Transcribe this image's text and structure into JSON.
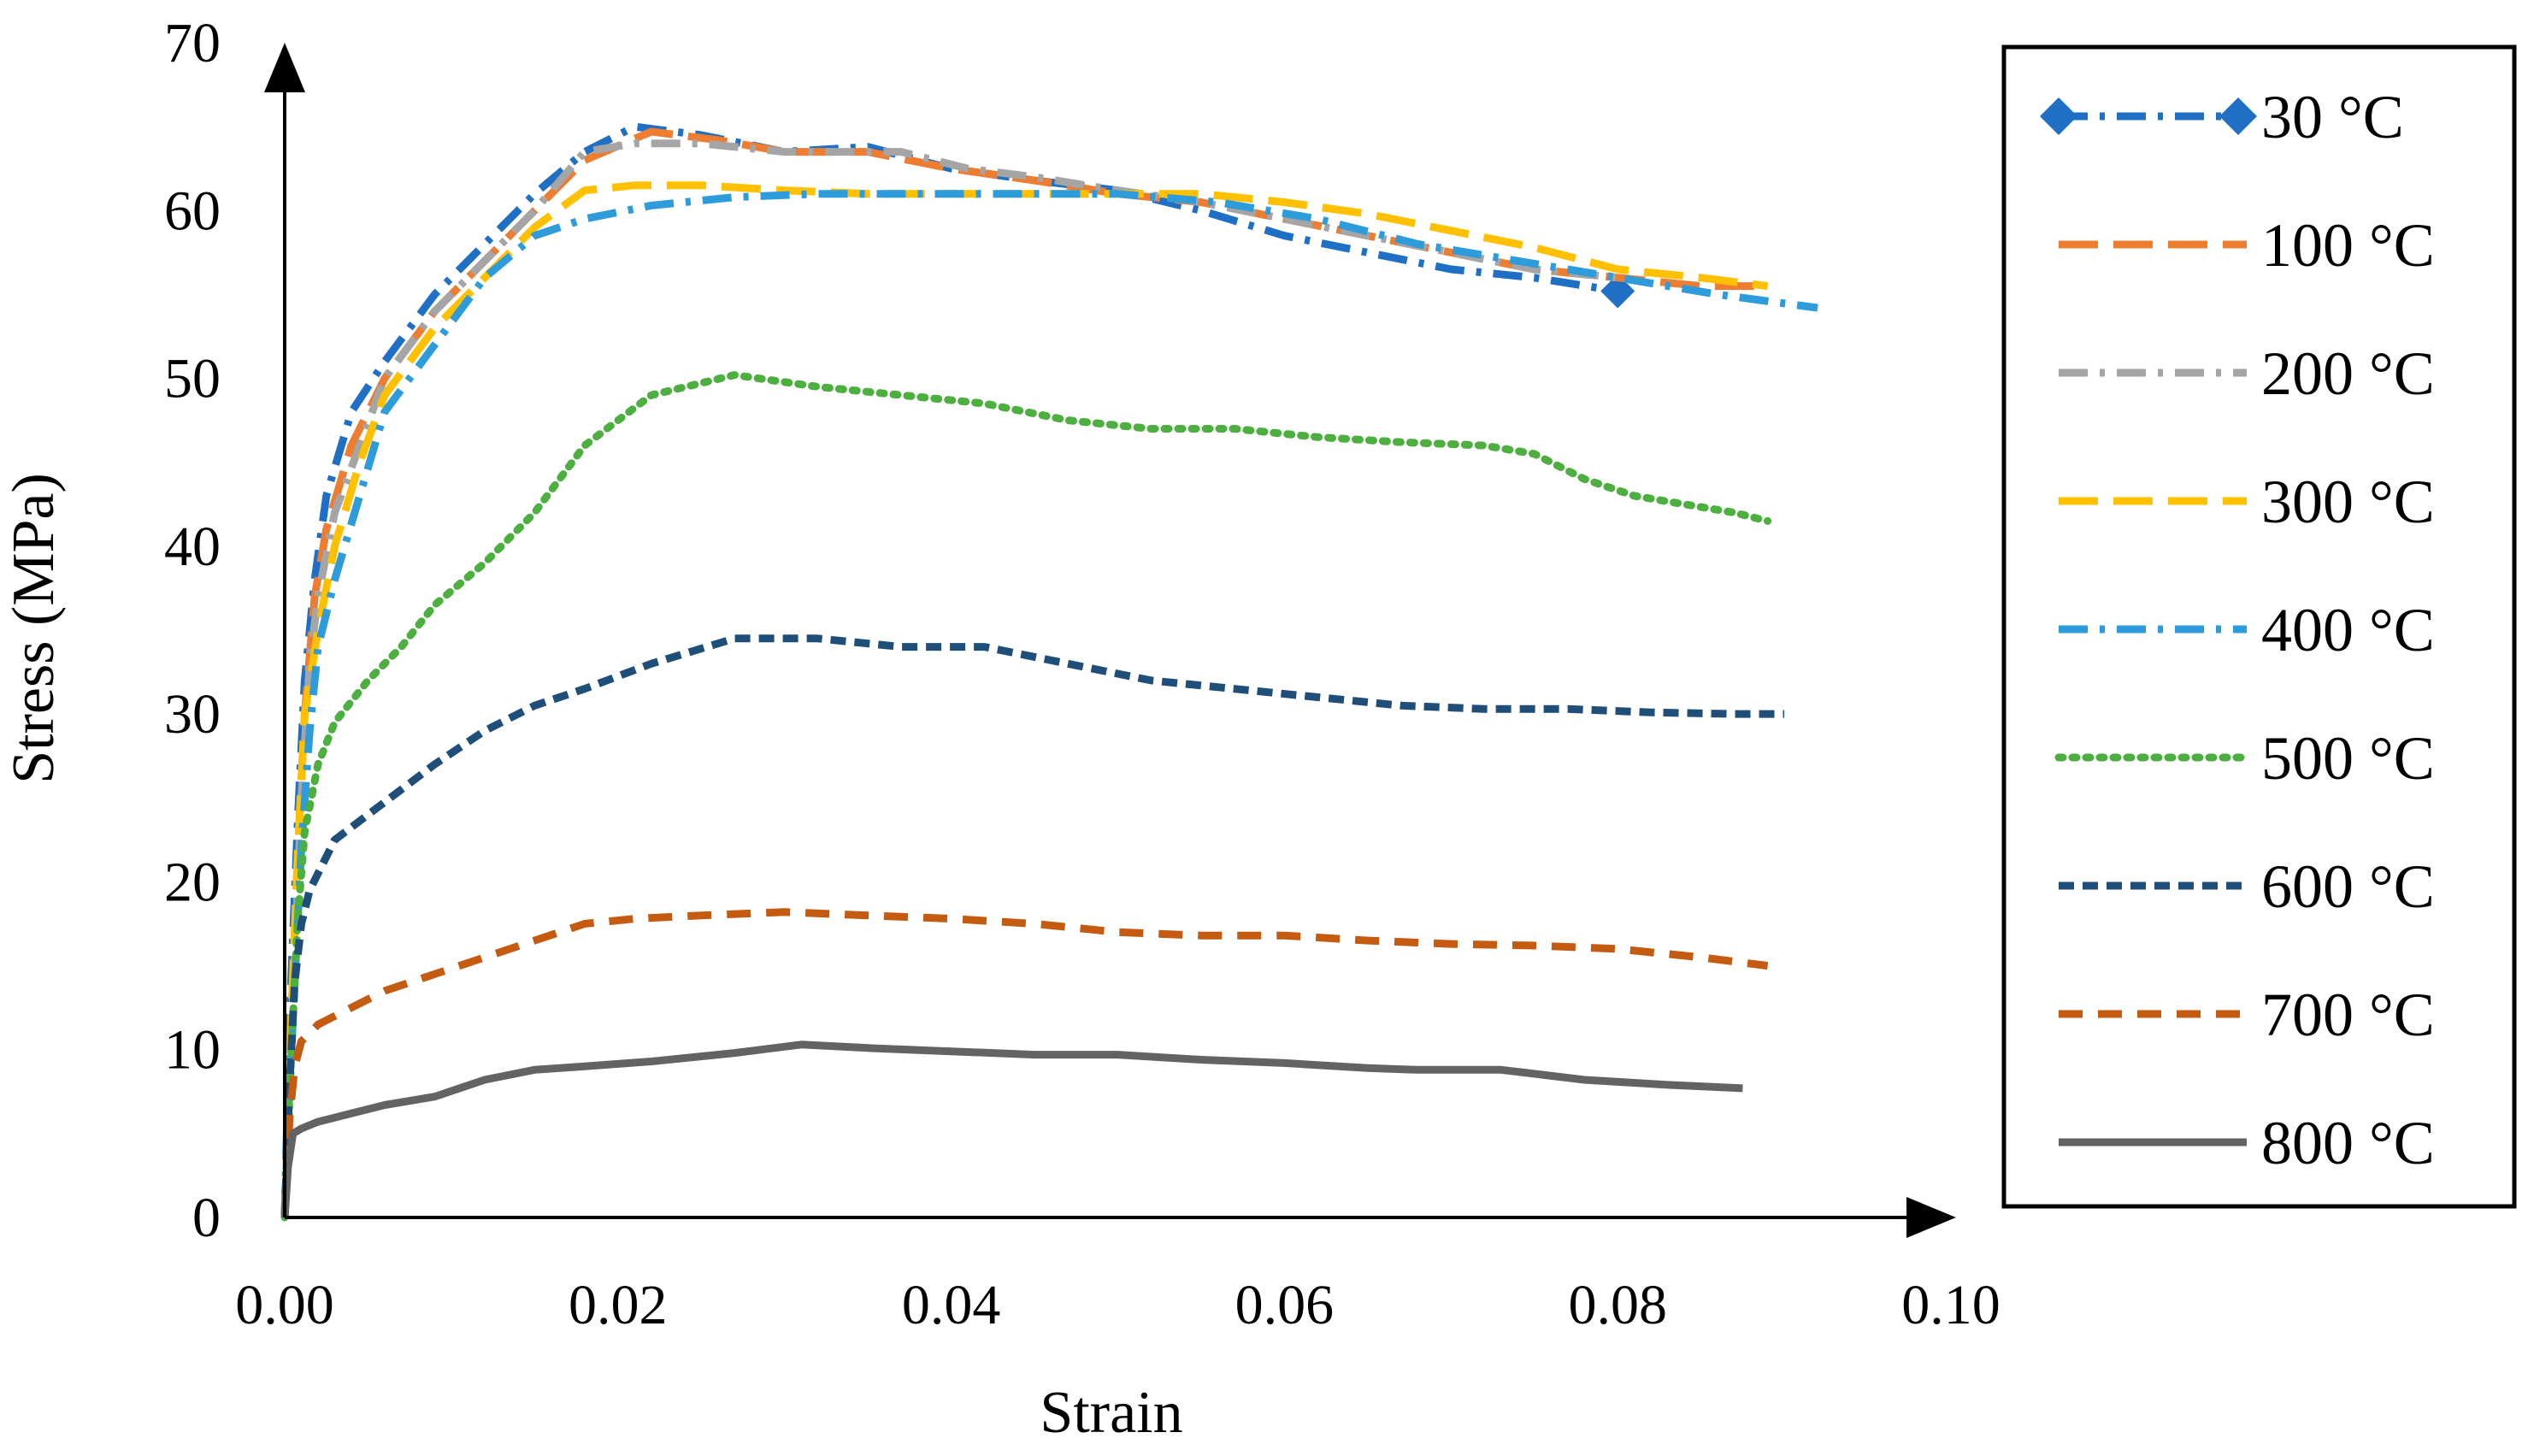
{
  "chart_data": {
    "type": "line",
    "title": "",
    "xlabel": "Strain",
    "ylabel": "Stress (MPa)",
    "xlim": [
      0,
      0.1
    ],
    "ylim": [
      0,
      70
    ],
    "x_ticks": [
      "0.00",
      "0.02",
      "0.04",
      "0.06",
      "0.08",
      "0.10"
    ],
    "x_tick_values": [
      0,
      0.02,
      0.04,
      0.06,
      0.08,
      0.1
    ],
    "y_ticks": [
      "0",
      "10",
      "20",
      "30",
      "40",
      "50",
      "60",
      "70"
    ],
    "y_tick_values": [
      0,
      10,
      20,
      30,
      40,
      50,
      60,
      70
    ],
    "grid": false,
    "legend_position": "right",
    "series": [
      {
        "name": "30 °C",
        "color": "#1F6FC5",
        "dash": "dashdot",
        "marker": "diamond",
        "end_markers": true,
        "x": [
          0,
          0.0003,
          0.0008,
          0.0012,
          0.0018,
          0.0025,
          0.004,
          0.006,
          0.009,
          0.012,
          0.015,
          0.018,
          0.021,
          0.025,
          0.03,
          0.035,
          0.04,
          0.045,
          0.05,
          0.055,
          0.06,
          0.065,
          0.07,
          0.075,
          0.08
        ],
        "y": [
          0,
          12,
          24,
          32,
          38,
          43,
          48,
          51,
          55,
          58,
          61,
          63.5,
          65,
          64.5,
          63.5,
          63.8,
          62.5,
          61.8,
          61.2,
          60,
          58.5,
          57.5,
          56.5,
          56,
          55.2
        ]
      },
      {
        "name": "100 °C",
        "color": "#ED7D31",
        "dash": "longdash",
        "marker": "none",
        "end_markers": false,
        "x": [
          0,
          0.0004,
          0.0008,
          0.0012,
          0.0018,
          0.0025,
          0.004,
          0.006,
          0.009,
          0.012,
          0.015,
          0.018,
          0.022,
          0.026,
          0.03,
          0.035,
          0.04,
          0.045,
          0.05,
          0.055,
          0.06,
          0.065,
          0.07,
          0.075,
          0.08,
          0.085,
          0.089
        ],
        "y": [
          0,
          12,
          22,
          30,
          37,
          41,
          46,
          50,
          54,
          57,
          60,
          63,
          64.7,
          64.2,
          63.5,
          63.5,
          62.5,
          61.8,
          61,
          60.5,
          59.5,
          58.5,
          57.5,
          56.5,
          56,
          55.5,
          55.5
        ]
      },
      {
        "name": "200 °C",
        "color": "#A5A5A5",
        "dash": "dashdot",
        "marker": "none",
        "end_markers": false,
        "x": [
          0,
          0.0005,
          0.001,
          0.0015,
          0.002,
          0.003,
          0.0045,
          0.006,
          0.009,
          0.012,
          0.015,
          0.018,
          0.021,
          0.025,
          0.03,
          0.037,
          0.041,
          0.045,
          0.05,
          0.055,
          0.06,
          0.065,
          0.07,
          0.075,
          0.08
        ],
        "y": [
          0,
          13,
          25,
          33,
          37,
          42,
          46,
          50,
          54,
          57,
          60,
          63.5,
          64,
          64,
          63.5,
          63.5,
          62.5,
          62,
          61.2,
          60.5,
          59.5,
          58.5,
          57.5,
          56.5,
          56
        ]
      },
      {
        "name": "300 °C",
        "color": "#FFC000",
        "dash": "longdash",
        "marker": "none",
        "end_markers": false,
        "x": [
          0,
          0.0004,
          0.0008,
          0.0012,
          0.002,
          0.003,
          0.0045,
          0.006,
          0.009,
          0.012,
          0.015,
          0.018,
          0.021,
          0.025,
          0.03,
          0.035,
          0.04,
          0.045,
          0.05,
          0.055,
          0.06,
          0.065,
          0.07,
          0.075,
          0.08,
          0.085,
          0.089
        ],
        "y": [
          0,
          12,
          22,
          30,
          35,
          40,
          45,
          49,
          53,
          56,
          59,
          61.2,
          61.5,
          61.5,
          61.2,
          61,
          61,
          61,
          61,
          61,
          60.5,
          59.8,
          58.8,
          57.8,
          56.5,
          56,
          55.5
        ]
      },
      {
        "name": "400 °C",
        "color": "#2E9BDA",
        "dash": "dashdot",
        "marker": "none",
        "end_markers": false,
        "x": [
          0,
          0.0005,
          0.001,
          0.0015,
          0.002,
          0.003,
          0.0045,
          0.006,
          0.009,
          0.012,
          0.015,
          0.018,
          0.022,
          0.027,
          0.032,
          0.038,
          0.044,
          0.05,
          0.056,
          0.062,
          0.068,
          0.074,
          0.08,
          0.086,
          0.092
        ],
        "y": [
          0,
          12,
          22,
          29,
          34,
          38,
          43,
          48,
          52,
          56,
          58.5,
          59.5,
          60.3,
          60.8,
          61,
          61,
          61,
          61,
          60.5,
          59.5,
          58,
          57,
          56,
          55,
          54.2
        ]
      },
      {
        "name": "500 °C",
        "color": "#4CAF3F",
        "dash": "dotted",
        "marker": "none",
        "end_markers": false,
        "x": [
          0,
          0.0004,
          0.0008,
          0.0012,
          0.002,
          0.003,
          0.005,
          0.007,
          0.009,
          0.012,
          0.015,
          0.018,
          0.022,
          0.027,
          0.032,
          0.037,
          0.042,
          0.047,
          0.052,
          0.057,
          0.062,
          0.067,
          0.072,
          0.075,
          0.078,
          0.081,
          0.084,
          0.087,
          0.089
        ],
        "y": [
          0,
          10,
          18,
          23,
          27,
          29.5,
          32,
          34,
          36.5,
          39,
          42,
          46,
          49,
          50.2,
          49.5,
          49,
          48.5,
          47.5,
          47,
          47,
          46.5,
          46.2,
          46,
          45.5,
          44,
          43,
          42.5,
          42,
          41.5
        ]
      },
      {
        "name": "600 °C",
        "color": "#1F4E79",
        "dash": "shortdash",
        "marker": "none",
        "end_markers": false,
        "x": [
          0,
          0.0003,
          0.0006,
          0.001,
          0.0015,
          0.002,
          0.003,
          0.005,
          0.007,
          0.009,
          0.012,
          0.015,
          0.018,
          0.022,
          0.027,
          0.032,
          0.037,
          0.042,
          0.047,
          0.052,
          0.057,
          0.062,
          0.067,
          0.072,
          0.077,
          0.082,
          0.087,
          0.09
        ],
        "y": [
          0,
          8,
          14,
          17.5,
          19.5,
          20.5,
          22.5,
          24,
          25.5,
          27,
          29,
          30.5,
          31.5,
          33,
          34.5,
          34.5,
          34,
          34,
          33,
          32,
          31.5,
          31,
          30.5,
          30.3,
          30.3,
          30.1,
          30,
          30
        ]
      },
      {
        "name": "700 °C",
        "color": "#C55A11",
        "dash": "mediumdash",
        "marker": "none",
        "end_markers": false,
        "x": [
          0,
          0.0003,
          0.0006,
          0.001,
          0.002,
          0.004,
          0.006,
          0.009,
          0.012,
          0.015,
          0.018,
          0.021,
          0.025,
          0.03,
          0.035,
          0.04,
          0.045,
          0.05,
          0.055,
          0.06,
          0.065,
          0.07,
          0.075,
          0.08,
          0.085,
          0.089
        ],
        "y": [
          0,
          6,
          9,
          10.5,
          11.5,
          12.5,
          13.5,
          14.5,
          15.5,
          16.5,
          17.5,
          17.8,
          18,
          18.2,
          18,
          17.8,
          17.5,
          17,
          16.8,
          16.8,
          16.5,
          16.3,
          16.2,
          16,
          15.5,
          15
        ]
      },
      {
        "name": "800 °C",
        "color": "#636363",
        "dash": "solid",
        "marker": "none",
        "end_markers": false,
        "x": [
          0,
          0.0002,
          0.0005,
          0.001,
          0.002,
          0.004,
          0.006,
          0.009,
          0.012,
          0.015,
          0.018,
          0.022,
          0.027,
          0.031,
          0.035,
          0.04,
          0.045,
          0.05,
          0.055,
          0.06,
          0.065,
          0.068,
          0.073,
          0.078,
          0.083,
          0.0875
        ],
        "y": [
          0,
          3,
          5,
          5.3,
          5.7,
          6.2,
          6.7,
          7.2,
          8.2,
          8.8,
          9,
          9.3,
          9.8,
          10.3,
          10.1,
          9.9,
          9.7,
          9.7,
          9.4,
          9.2,
          8.9,
          8.8,
          8.8,
          8.2,
          7.9,
          7.7
        ]
      }
    ]
  }
}
